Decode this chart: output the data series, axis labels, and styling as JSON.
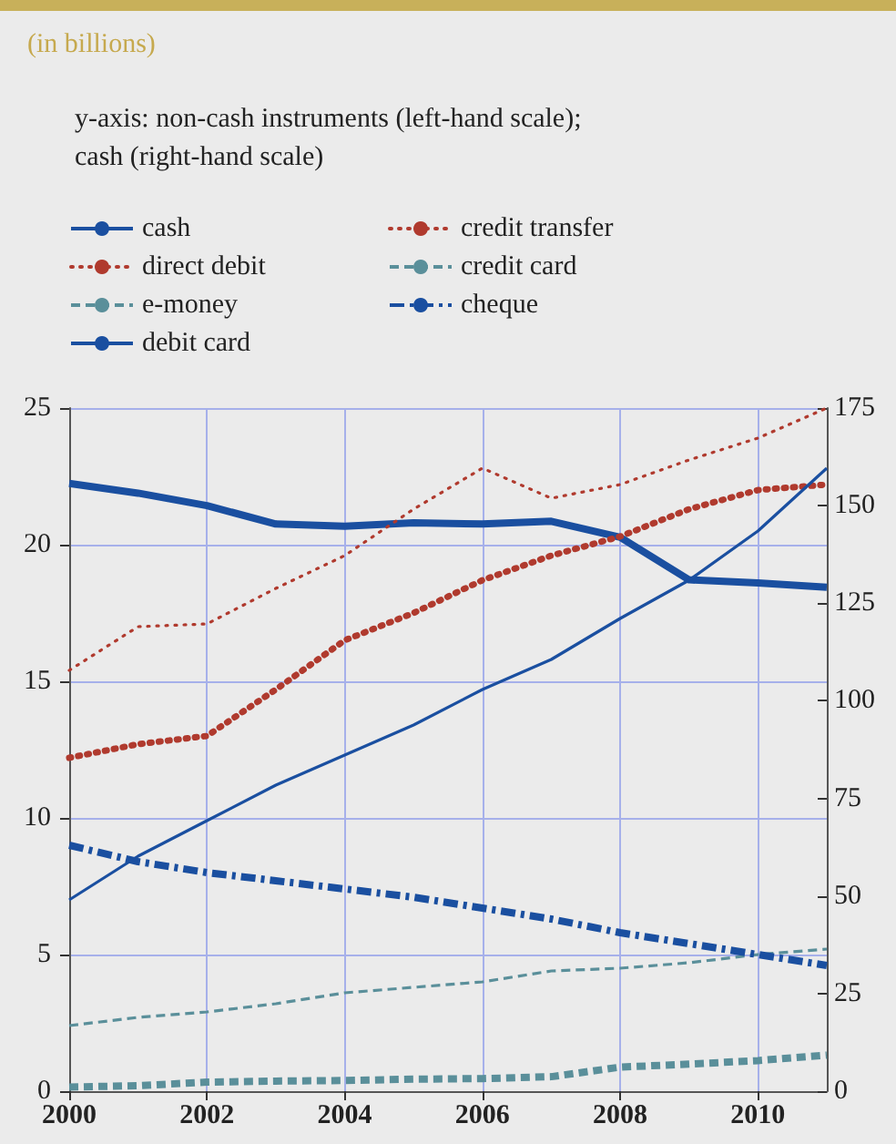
{
  "chart_data": {
    "type": "line",
    "title": "(in billions)",
    "subtitle": "y-axis: non-cash instruments (left-hand scale);\ncash (right-hand scale)",
    "x": [
      2000,
      2001,
      2002,
      2003,
      2004,
      2005,
      2006,
      2007,
      2008,
      2009,
      2010,
      2011
    ],
    "series": [
      {
        "name": "cash",
        "color": "#1a4fa0",
        "axis": "y2",
        "line_style": "solid",
        "values": [
          155.7,
          153.2,
          150.0,
          145.3,
          144.7,
          145.6,
          145.3,
          146.0,
          141.9,
          131.0,
          130.2,
          129.1
        ]
      },
      {
        "name": "direct debit",
        "color": "#b03a2e",
        "line_style": "dotted",
        "values": [
          12.2,
          12.7,
          13.0,
          14.7,
          16.5,
          17.5,
          18.7,
          19.6,
          20.3,
          21.3,
          22.0,
          22.2
        ]
      },
      {
        "name": "e-money",
        "color": "#5a8f9a",
        "line_style": "dashed",
        "values": [
          0.15,
          0.2,
          0.33,
          0.37,
          0.39,
          0.44,
          0.46,
          0.53,
          0.88,
          0.99,
          1.12,
          1.32
        ]
      },
      {
        "name": "debit card",
        "color": "#1a4fa0",
        "line_style": "solid",
        "values": [
          7.0,
          8.6,
          9.9,
          11.2,
          12.3,
          13.4,
          14.7,
          15.8,
          17.3,
          18.7,
          20.5,
          22.8
        ]
      },
      {
        "name": "credit transfer",
        "color": "#b03a2e",
        "line_style": "dotted",
        "values": [
          15.4,
          17.0,
          17.1,
          18.4,
          19.6,
          21.3,
          22.8,
          21.7,
          22.2,
          23.1,
          23.9,
          25.0
        ]
      },
      {
        "name": "credit card",
        "color": "#5a8f9a",
        "line_style": "dashed",
        "values": [
          2.4,
          2.7,
          2.9,
          3.2,
          3.6,
          3.8,
          4.0,
          4.4,
          4.5,
          4.7,
          5.0,
          5.2
        ]
      },
      {
        "name": "cheque",
        "color": "#1a4fa0",
        "line_style": "dashdot",
        "values": [
          9.0,
          8.4,
          8.0,
          7.7,
          7.4,
          7.1,
          6.7,
          6.3,
          5.8,
          5.4,
          5.0,
          4.6
        ]
      }
    ],
    "xlim": [
      2000,
      2011
    ],
    "xticks": [
      2000,
      2002,
      2004,
      2006,
      2008,
      2010
    ],
    "ylim": [
      0,
      25
    ],
    "yticks": [
      0,
      5,
      10,
      15,
      20,
      25
    ],
    "y2lim": [
      0,
      175
    ],
    "y2ticks": [
      0,
      25,
      50,
      75,
      100,
      125,
      150,
      175
    ],
    "grid": true,
    "legend": "top left",
    "marker": "none"
  }
}
